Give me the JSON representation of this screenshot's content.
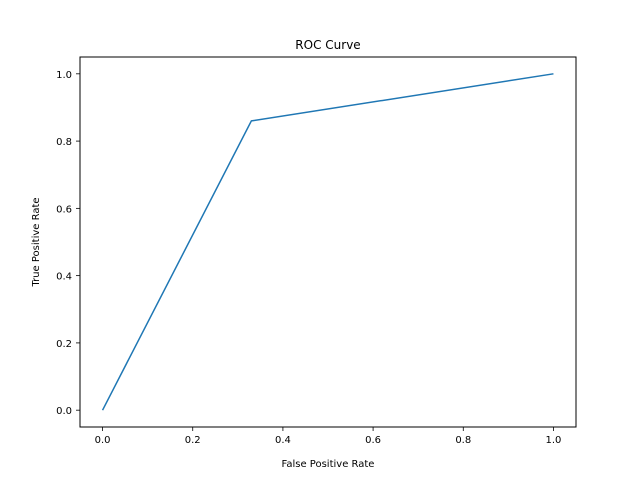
{
  "chart_data": {
    "type": "line",
    "title": "ROC Curve",
    "xlabel": "False Positive Rate",
    "ylabel": "True Positive Rate",
    "xlim": [
      -0.05,
      1.05
    ],
    "ylim": [
      -0.05,
      1.05
    ],
    "x_ticks": [
      "0.0",
      "0.2",
      "0.4",
      "0.6",
      "0.8",
      "1.0"
    ],
    "y_ticks": [
      "0.0",
      "0.2",
      "0.4",
      "0.6",
      "0.8",
      "1.0"
    ],
    "grid": false,
    "series": [
      {
        "x": [
          0.0,
          0.33,
          1.0
        ],
        "y": [
          0.0,
          0.86,
          1.0
        ],
        "color": "#1f77b4"
      }
    ]
  }
}
